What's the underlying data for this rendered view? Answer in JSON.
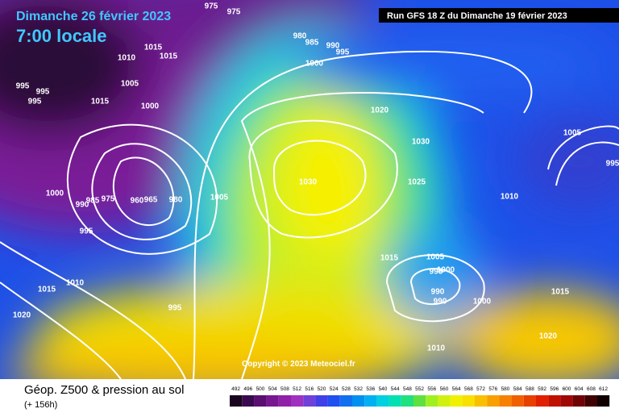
{
  "header": {
    "date": "Dimanche 26 février 2023",
    "time": "7:00 locale",
    "run": "Run GFS 18 Z du Dimanche 19 février 2023"
  },
  "copyright": "Copyright © 2023 Meteociel.fr",
  "footer": {
    "title": "Géop. Z500 & pression au sol",
    "lead": "(+ 156h)"
  },
  "scale": {
    "labels": [
      "492",
      "496",
      "500",
      "504",
      "508",
      "512",
      "516",
      "520",
      "524",
      "528",
      "532",
      "536",
      "540",
      "544",
      "548",
      "552",
      "556",
      "560",
      "564",
      "568",
      "572",
      "576",
      "580",
      "584",
      "588",
      "592",
      "596",
      "600",
      "604",
      "608",
      "612"
    ],
    "colors": [
      "#1a0520",
      "#3a0a50",
      "#5a1070",
      "#781890",
      "#9020a8",
      "#a030c0",
      "#7040d8",
      "#4040e8",
      "#2050f0",
      "#1070f0",
      "#0090f0",
      "#00b0f0",
      "#00d0e0",
      "#00e0b0",
      "#20e080",
      "#60e040",
      "#a0f020",
      "#d0f010",
      "#f0f000",
      "#f8e000",
      "#f8c000",
      "#f8a000",
      "#f88000",
      "#f06000",
      "#e84000",
      "#e02000",
      "#c01000",
      "#a00808",
      "#700404",
      "#400202",
      "#100000"
    ]
  },
  "isobars": [
    "975",
    "975",
    "980",
    "985",
    "990",
    "995",
    "1000",
    "1010",
    "1015",
    "1015",
    "1005",
    "1015",
    "1000",
    "995",
    "995",
    "995",
    "1020",
    "1030",
    "1030",
    "1025",
    "1005",
    "995",
    "1010",
    "1005",
    "1000",
    "990",
    "985",
    "975",
    "960",
    "965",
    "980",
    "995",
    "1015",
    "1005",
    "1000",
    "995",
    "990",
    "990",
    "1000",
    "1015",
    "1010",
    "1015",
    "1020",
    "995",
    "1020",
    "1010"
  ]
}
